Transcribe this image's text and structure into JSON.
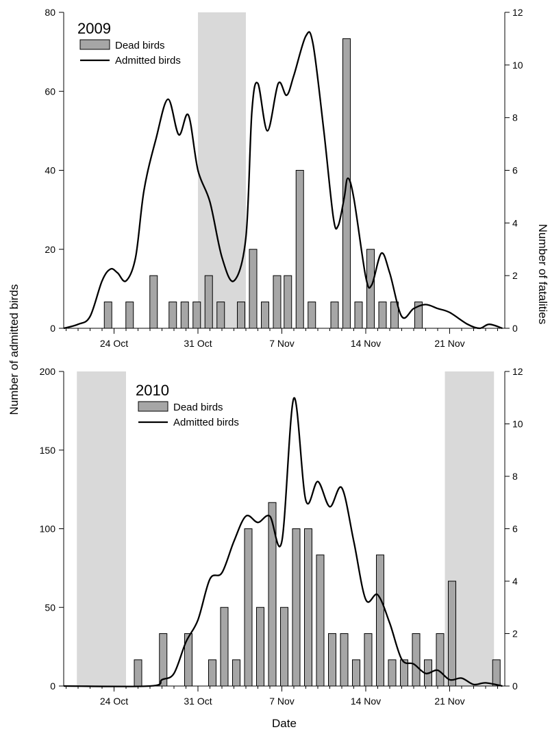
{
  "figure": {
    "ylabel_left": "Number of admitted birds",
    "ylabel_right": "Number of fatalities",
    "xlabel": "Date"
  },
  "chart_data": [
    {
      "type": "bar+line",
      "title": "2009",
      "legend": {
        "bars": "Dead birds",
        "line": "Admitted birds",
        "placement": "top-left"
      },
      "x_ticks": [
        {
          "label": "24 Oct",
          "day": 24
        },
        {
          "label": "31 Oct",
          "day": 31
        },
        {
          "label": "7 Nov",
          "day": 38
        },
        {
          "label": "14 Nov",
          "day": 45
        },
        {
          "label": "21 Nov",
          "day": 52
        }
      ],
      "x_range_day": [
        19.8,
        56.4
      ],
      "y_left": {
        "range": [
          0,
          80
        ],
        "ticks": [
          0,
          20,
          40,
          60,
          80
        ]
      },
      "y_right": {
        "range": [
          0,
          12
        ],
        "ticks": [
          0,
          2,
          4,
          6,
          8,
          10,
          12
        ]
      },
      "shaded_periods_day": [
        [
          31,
          35
        ]
      ],
      "colors": {
        "bars": "#a6a6a6",
        "line": "#000000",
        "shade": "#d9d9d9"
      },
      "dead_birds": [
        {
          "day": 23.5,
          "value": 1
        },
        {
          "day": 25.3,
          "value": 1
        },
        {
          "day": 27.3,
          "value": 2
        },
        {
          "day": 28.9,
          "value": 1
        },
        {
          "day": 29.9,
          "value": 1
        },
        {
          "day": 30.9,
          "value": 1
        },
        {
          "day": 31.9,
          "value": 2
        },
        {
          "day": 32.9,
          "value": 1
        },
        {
          "day": 34.6,
          "value": 1
        },
        {
          "day": 35.6,
          "value": 3
        },
        {
          "day": 36.6,
          "value": 1
        },
        {
          "day": 37.6,
          "value": 2
        },
        {
          "day": 38.5,
          "value": 2
        },
        {
          "day": 39.5,
          "value": 6
        },
        {
          "day": 40.5,
          "value": 1
        },
        {
          "day": 42.4,
          "value": 1
        },
        {
          "day": 43.4,
          "value": 11
        },
        {
          "day": 44.4,
          "value": 1
        },
        {
          "day": 45.4,
          "value": 3
        },
        {
          "day": 46.4,
          "value": 1
        },
        {
          "day": 47.4,
          "value": 1
        },
        {
          "day": 49.4,
          "value": 1
        }
      ],
      "admitted_birds": [
        {
          "day": 19.8,
          "value": 0
        },
        {
          "day": 21,
          "value": 1
        },
        {
          "day": 22,
          "value": 3
        },
        {
          "day": 23,
          "value": 12
        },
        {
          "day": 23.7,
          "value": 15
        },
        {
          "day": 24.3,
          "value": 14
        },
        {
          "day": 25,
          "value": 12
        },
        {
          "day": 25.8,
          "value": 18
        },
        {
          "day": 26.5,
          "value": 35
        },
        {
          "day": 27.5,
          "value": 48
        },
        {
          "day": 28.5,
          "value": 58
        },
        {
          "day": 29.4,
          "value": 49
        },
        {
          "day": 30.2,
          "value": 54
        },
        {
          "day": 31,
          "value": 40
        },
        {
          "day": 32,
          "value": 32
        },
        {
          "day": 33,
          "value": 18
        },
        {
          "day": 34,
          "value": 12
        },
        {
          "day": 35,
          "value": 23
        },
        {
          "day": 35.5,
          "value": 55
        },
        {
          "day": 36,
          "value": 62
        },
        {
          "day": 36.8,
          "value": 50
        },
        {
          "day": 37.7,
          "value": 62
        },
        {
          "day": 38.4,
          "value": 59
        },
        {
          "day": 39,
          "value": 64
        },
        {
          "day": 40,
          "value": 74
        },
        {
          "day": 40.6,
          "value": 72
        },
        {
          "day": 41.5,
          "value": 50
        },
        {
          "day": 42.3,
          "value": 28
        },
        {
          "day": 42.7,
          "value": 26
        },
        {
          "day": 43.2,
          "value": 33
        },
        {
          "day": 43.5,
          "value": 38
        },
        {
          "day": 44,
          "value": 33
        },
        {
          "day": 45,
          "value": 13
        },
        {
          "day": 45.5,
          "value": 11
        },
        {
          "day": 46.3,
          "value": 19
        },
        {
          "day": 47,
          "value": 14
        },
        {
          "day": 48,
          "value": 3
        },
        {
          "day": 49,
          "value": 5
        },
        {
          "day": 50,
          "value": 6
        },
        {
          "day": 51,
          "value": 5
        },
        {
          "day": 52,
          "value": 4
        },
        {
          "day": 53.5,
          "value": 1
        },
        {
          "day": 54.5,
          "value": 0
        },
        {
          "day": 55.3,
          "value": 1
        },
        {
          "day": 56.4,
          "value": 0
        }
      ]
    },
    {
      "type": "bar+line",
      "title": "2010",
      "legend": {
        "bars": "Dead birds",
        "line": "Admitted birds",
        "placement": "top-center"
      },
      "x_ticks": [
        {
          "label": "24 Oct",
          "day": 24
        },
        {
          "label": "31 Oct",
          "day": 31
        },
        {
          "label": "7 Nov",
          "day": 38
        },
        {
          "label": "14 Nov",
          "day": 45
        },
        {
          "label": "21 Nov",
          "day": 52
        }
      ],
      "x_range_day": [
        19.8,
        56.4
      ],
      "y_left": {
        "range": [
          0,
          200
        ],
        "ticks": [
          0,
          50,
          100,
          150,
          200
        ]
      },
      "y_right": {
        "range": [
          0,
          12
        ],
        "ticks": [
          0,
          2,
          4,
          6,
          8,
          10,
          12
        ]
      },
      "shaded_periods_day": [
        [
          20.9,
          25
        ],
        [
          51.6,
          55.7
        ]
      ],
      "colors": {
        "bars": "#a6a6a6",
        "line": "#000000",
        "shade": "#d9d9d9"
      },
      "dead_birds": [
        {
          "day": 26,
          "value": 1
        },
        {
          "day": 28.1,
          "value": 2
        },
        {
          "day": 30.2,
          "value": 2
        },
        {
          "day": 32.2,
          "value": 1
        },
        {
          "day": 33.2,
          "value": 3
        },
        {
          "day": 34.2,
          "value": 1
        },
        {
          "day": 35.2,
          "value": 6
        },
        {
          "day": 36.2,
          "value": 3
        },
        {
          "day": 37.2,
          "value": 7
        },
        {
          "day": 38.2,
          "value": 3
        },
        {
          "day": 39.2,
          "value": 6
        },
        {
          "day": 40.2,
          "value": 6
        },
        {
          "day": 41.2,
          "value": 5
        },
        {
          "day": 42.2,
          "value": 2
        },
        {
          "day": 43.2,
          "value": 2
        },
        {
          "day": 44.2,
          "value": 1
        },
        {
          "day": 45.2,
          "value": 2
        },
        {
          "day": 46.2,
          "value": 5
        },
        {
          "day": 47.2,
          "value": 1
        },
        {
          "day": 48.2,
          "value": 1
        },
        {
          "day": 49.2,
          "value": 2
        },
        {
          "day": 50.2,
          "value": 1
        },
        {
          "day": 51.2,
          "value": 2
        },
        {
          "day": 52.2,
          "value": 4
        },
        {
          "day": 55.9,
          "value": 1
        }
      ],
      "admitted_birds": [
        {
          "day": 19.8,
          "value": 0
        },
        {
          "day": 27,
          "value": 0
        },
        {
          "day": 28,
          "value": 4
        },
        {
          "day": 29,
          "value": 8
        },
        {
          "day": 30,
          "value": 28
        },
        {
          "day": 31,
          "value": 42
        },
        {
          "day": 32,
          "value": 68
        },
        {
          "day": 33,
          "value": 72
        },
        {
          "day": 34,
          "value": 92
        },
        {
          "day": 35,
          "value": 108
        },
        {
          "day": 36,
          "value": 104
        },
        {
          "day": 37,
          "value": 108
        },
        {
          "day": 38,
          "value": 92
        },
        {
          "day": 39,
          "value": 183
        },
        {
          "day": 40,
          "value": 118
        },
        {
          "day": 41,
          "value": 130
        },
        {
          "day": 42,
          "value": 114
        },
        {
          "day": 43,
          "value": 126
        },
        {
          "day": 44,
          "value": 92
        },
        {
          "day": 45,
          "value": 55
        },
        {
          "day": 46,
          "value": 58
        },
        {
          "day": 47,
          "value": 40
        },
        {
          "day": 48,
          "value": 17
        },
        {
          "day": 49,
          "value": 14
        },
        {
          "day": 50,
          "value": 8
        },
        {
          "day": 51,
          "value": 10
        },
        {
          "day": 52,
          "value": 4
        },
        {
          "day": 53,
          "value": 5
        },
        {
          "day": 54,
          "value": 1
        },
        {
          "day": 55,
          "value": 2
        },
        {
          "day": 56.4,
          "value": 0
        }
      ]
    }
  ]
}
